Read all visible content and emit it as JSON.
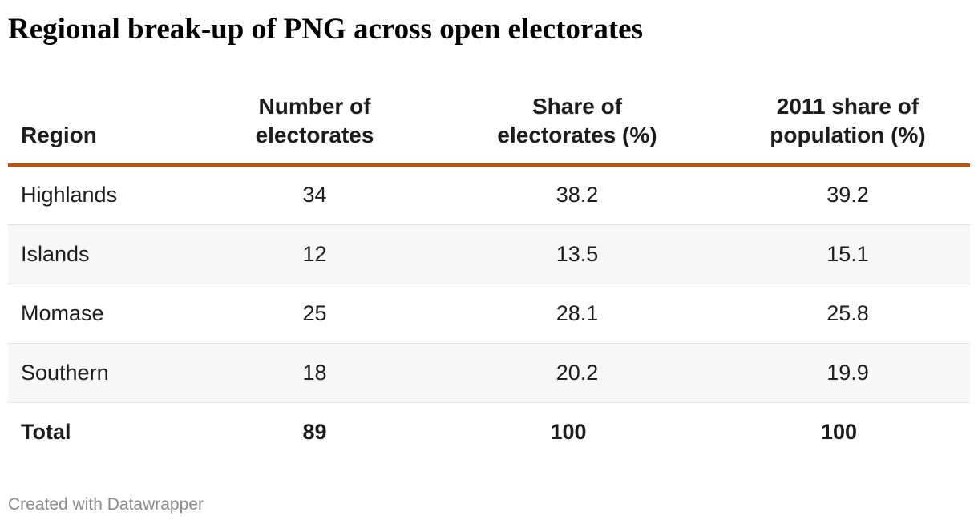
{
  "chart_data": {
    "type": "table",
    "title": "Regional break-up of PNG across open electorates",
    "columns": [
      "Region",
      "Number of electorates",
      "Share of electorates (%)",
      "2011 share of population (%)"
    ],
    "header_lines": [
      [
        "Region"
      ],
      [
        "Number of",
        "electorates"
      ],
      [
        "Share of",
        "electorates (%)"
      ],
      [
        "2011 share of",
        "population (%)"
      ]
    ],
    "rows": [
      {
        "region": "Highlands",
        "electorates": "34",
        "share_electorates": "38.2",
        "share_population": "39.2"
      },
      {
        "region": "Islands",
        "electorates": "12",
        "share_electorates": "13.5",
        "share_population": "15.1"
      },
      {
        "region": "Momase",
        "electorates": "25",
        "share_electorates": "28.1",
        "share_population": "25.8"
      },
      {
        "region": "Southern",
        "electorates": "18",
        "share_electorates": "20.2",
        "share_population": "19.9"
      }
    ],
    "total": {
      "region": "Total",
      "electorates": "89",
      "share_electorates": "100",
      "share_population": "100"
    }
  },
  "colors": {
    "header_rule": "#c0500e",
    "stripe": "#f7f7f7",
    "row_divider": "#e3e3e3",
    "credit_text": "#8a8a8a"
  },
  "footer": {
    "credit": "Created with Datawrapper"
  }
}
